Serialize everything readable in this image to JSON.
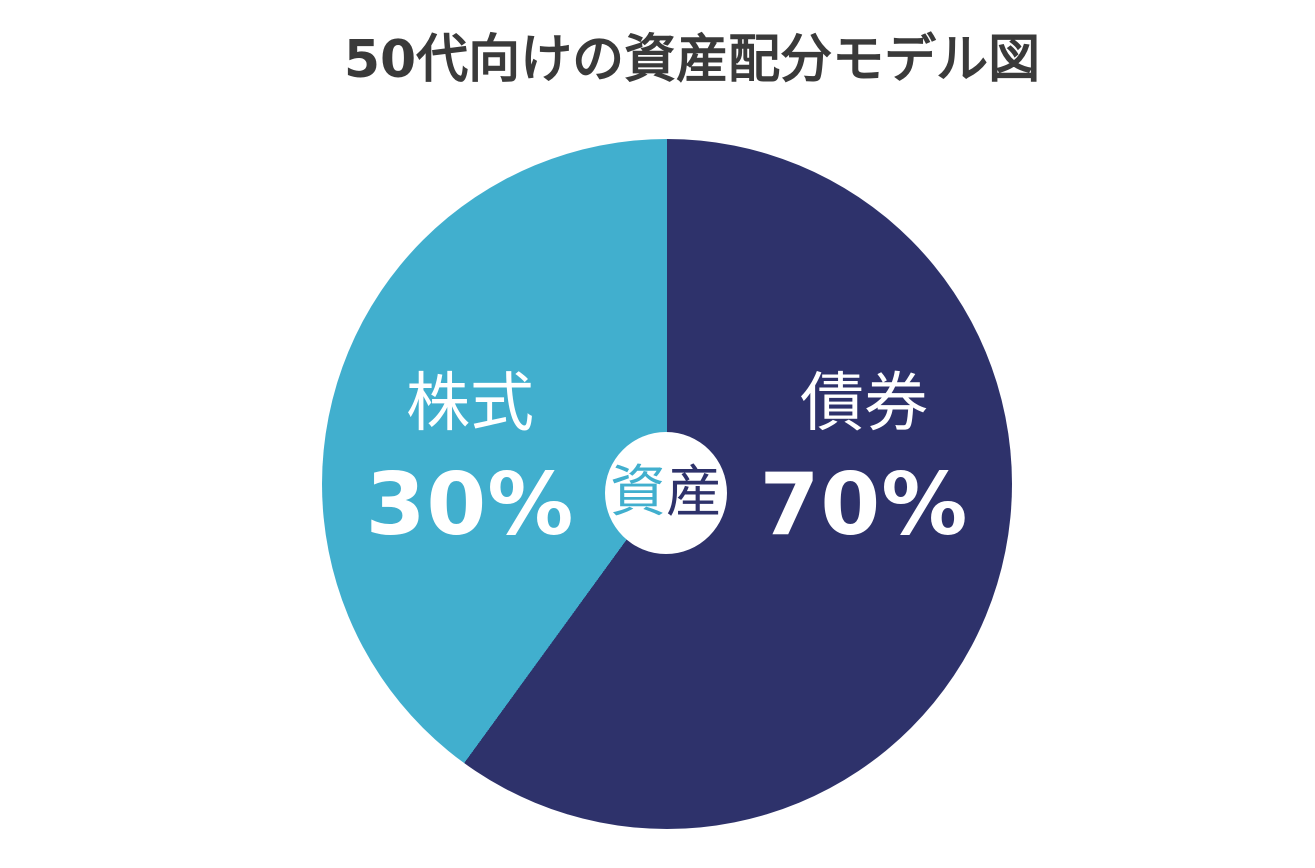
{
  "chart_data": {
    "type": "pie",
    "title": "50代向けの資産配分モデル図",
    "center_label": "資産",
    "slices": [
      {
        "label": "債券",
        "value": 70,
        "value_label": "70%",
        "color": "#2e326b",
        "text_color": "#ffffff"
      },
      {
        "label": "株式",
        "value": 30,
        "value_label": "30%",
        "color": "#41afce",
        "text_color": "#ffffff"
      }
    ],
    "start_angle_deg": 0,
    "direction": "clockwise",
    "legend_position": "none",
    "donut_hole": "white circle with text 資産"
  },
  "center_label": {
    "chars": [
      {
        "text": "資",
        "color": "#41afce"
      },
      {
        "text": "産",
        "color": "#2e326b"
      }
    ]
  },
  "colors": {
    "background": "#ffffff",
    "title_text": "#3a3a3a",
    "stocks_cyan": "#41afce",
    "bonds_navy": "#2e326b",
    "slice_label_text": "#ffffff",
    "center_circle": "#ffffff"
  }
}
